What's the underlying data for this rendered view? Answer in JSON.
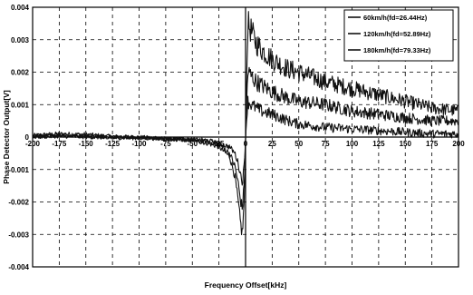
{
  "chart_data": {
    "type": "line",
    "title": "",
    "xlabel": "Frequency Offset[kHz]",
    "ylabel": "Phase Detector Output[V]",
    "xlim": [
      -200,
      200
    ],
    "ylim": [
      -0.004,
      0.004
    ],
    "x_ticks": [
      "-200",
      "-175",
      "-150",
      "-125",
      "-100",
      "-75",
      "-50",
      "-25",
      "0",
      "25",
      "50",
      "75",
      "100",
      "125",
      "150",
      "175",
      "200"
    ],
    "y_ticks": [
      "0.004",
      "0.003",
      "0.002",
      "0.001",
      "0",
      "-0.001",
      "-0.002",
      "-0.003",
      "-0.004"
    ],
    "grid": true,
    "legend_position": "top-right",
    "series": [
      {
        "name": "60km/h(fd=26.44Hz)",
        "points": [
          [
            -200,
            5e-05
          ],
          [
            -175,
            0.0001
          ],
          [
            -150,
            8e-05
          ],
          [
            -125,
            2e-05
          ],
          [
            -100,
            0
          ],
          [
            -75,
            -5e-05
          ],
          [
            -50,
            -0.0001
          ],
          [
            -35,
            -0.0002
          ],
          [
            -25,
            -0.0003
          ],
          [
            -15,
            -0.0006
          ],
          [
            -10,
            -0.0012
          ],
          [
            -7,
            -0.002
          ],
          [
            -5,
            -0.0026
          ],
          [
            -3,
            -0.003
          ],
          [
            -1,
            -0.0018
          ],
          [
            0,
            0
          ],
          [
            2,
            0.0035
          ],
          [
            5,
            0.0033
          ],
          [
            10,
            0.0029
          ],
          [
            15,
            0.0027
          ],
          [
            25,
            0.0024
          ],
          [
            40,
            0.0021
          ],
          [
            50,
            0.002
          ],
          [
            75,
            0.0017
          ],
          [
            100,
            0.0015
          ],
          [
            125,
            0.0013
          ],
          [
            150,
            0.0011
          ],
          [
            175,
            0.0009
          ],
          [
            200,
            0.0008
          ]
        ],
        "color": "#111111"
      },
      {
        "name": "120km/h(fd=52.89Hz)",
        "points": [
          [
            -200,
            3e-05
          ],
          [
            -175,
            6e-05
          ],
          [
            -150,
            3e-05
          ],
          [
            -125,
            0
          ],
          [
            -100,
            -2e-05
          ],
          [
            -75,
            -5e-05
          ],
          [
            -50,
            -0.0001
          ],
          [
            -35,
            -0.00015
          ],
          [
            -25,
            -0.0002
          ],
          [
            -15,
            -0.0005
          ],
          [
            -10,
            -0.0009
          ],
          [
            -7,
            -0.0014
          ],
          [
            -5,
            -0.0019
          ],
          [
            -3,
            -0.0022
          ],
          [
            -1,
            -0.0013
          ],
          [
            0,
            0
          ],
          [
            2,
            0.002
          ],
          [
            5,
            0.0019
          ],
          [
            10,
            0.0017
          ],
          [
            15,
            0.0016
          ],
          [
            25,
            0.0014
          ],
          [
            40,
            0.0012
          ],
          [
            50,
            0.0011
          ],
          [
            75,
            0.001
          ],
          [
            100,
            0.0008
          ],
          [
            125,
            0.0007
          ],
          [
            150,
            0.0006
          ],
          [
            175,
            0.0005
          ],
          [
            200,
            0.0005
          ]
        ],
        "color": "#111111"
      },
      {
        "name": "180km/h(fd=79.33Hz)",
        "points": [
          [
            -200,
            0
          ],
          [
            -175,
            3e-05
          ],
          [
            -150,
            0
          ],
          [
            -125,
            -2e-05
          ],
          [
            -100,
            -3e-05
          ],
          [
            -75,
            -5e-05
          ],
          [
            -50,
            -8e-05
          ],
          [
            -35,
            -0.0001
          ],
          [
            -25,
            -0.0002
          ],
          [
            -15,
            -0.0003
          ],
          [
            -10,
            -0.0005
          ],
          [
            -7,
            -0.0008
          ],
          [
            -5,
            -0.0011
          ],
          [
            -3,
            -0.0014
          ],
          [
            -1,
            -0.0008
          ],
          [
            0,
            0
          ],
          [
            2,
            0.0011
          ],
          [
            5,
            0.001
          ],
          [
            10,
            0.0009
          ],
          [
            15,
            0.0008
          ],
          [
            25,
            0.0007
          ],
          [
            40,
            0.0005
          ],
          [
            50,
            0.0004
          ],
          [
            75,
            0.0003
          ],
          [
            100,
            0.00025
          ],
          [
            125,
            0.0002
          ],
          [
            150,
            0.00015
          ],
          [
            175,
            0.0001
          ],
          [
            200,
            0.0001
          ]
        ],
        "color": "#111111"
      }
    ]
  }
}
